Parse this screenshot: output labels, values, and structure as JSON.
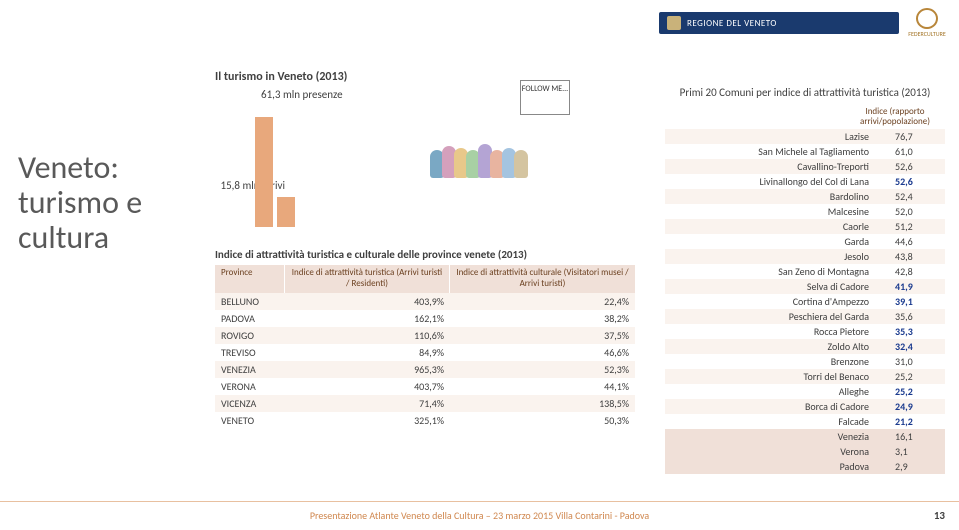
{
  "header": {
    "region_label": "REGIONE DEL VENETO",
    "logo_text": "FEDERCULTURE"
  },
  "left_title_lines": [
    "Veneto:",
    "turismo e",
    "cultura"
  ],
  "chart": {
    "title": "Il turismo in Veneto (2013)",
    "bar1_label": "61,3 mln presenze",
    "bar2_label": "15,8 mln arrivi",
    "bar1_height": 110,
    "bar2_height": 30,
    "bar_color": "#e8a87c"
  },
  "follow_sign": "FOLLOW ME...",
  "prov": {
    "title": "Indice di attrattività turistica e culturale delle province venete (2013)",
    "head": [
      "Province",
      "Indice di attrattività turistica (Arrivi turisti / Residenti)",
      "Indice di attrattività culturale (Visitatori musei / Arrivi turisti)"
    ],
    "rows": [
      [
        "BELLUNO",
        "403,9%",
        "22,4%"
      ],
      [
        "PADOVA",
        "162,1%",
        "38,2%"
      ],
      [
        "ROVIGO",
        "110,6%",
        "37,5%"
      ],
      [
        "TREVISO",
        "84,9%",
        "46,6%"
      ],
      [
        "VENEZIA",
        "965,3%",
        "52,3%"
      ],
      [
        "VERONA",
        "403,7%",
        "44,1%"
      ],
      [
        "VICENZA",
        "71,4%",
        "138,5%"
      ],
      [
        "VENETO",
        "325,1%",
        "50,3%"
      ]
    ]
  },
  "right": {
    "title": "Primi 20 Comuni per indice di attrattività turistica (2013)",
    "head2": "Indice (rapporto arrivi/popolazione)",
    "rows": [
      {
        "n": "Lazise",
        "v": "76,7",
        "hl": false
      },
      {
        "n": "San Michele al Tagliamento",
        "v": "61,0",
        "hl": false
      },
      {
        "n": "Cavallino-Treporti",
        "v": "52,6",
        "hl": false
      },
      {
        "n": "Livinallongo del Col di Lana",
        "v": "52,6",
        "hl": true
      },
      {
        "n": "Bardolino",
        "v": "52,4",
        "hl": false
      },
      {
        "n": "Malcesine",
        "v": "52,0",
        "hl": false
      },
      {
        "n": "Caorle",
        "v": "51,2",
        "hl": false
      },
      {
        "n": "Garda",
        "v": "44,6",
        "hl": false
      },
      {
        "n": "Jesolo",
        "v": "43,8",
        "hl": false
      },
      {
        "n": "San Zeno di Montagna",
        "v": "42,8",
        "hl": false
      },
      {
        "n": "Selva di Cadore",
        "v": "41,9",
        "hl": true
      },
      {
        "n": "Cortina d'Ampezzo",
        "v": "39,1",
        "hl": true
      },
      {
        "n": "Peschiera del Garda",
        "v": "35,6",
        "hl": false
      },
      {
        "n": "Rocca Pietore",
        "v": "35,3",
        "hl": true
      },
      {
        "n": "Zoldo Alto",
        "v": "32,4",
        "hl": true
      },
      {
        "n": "Brenzone",
        "v": "31,0",
        "hl": false
      },
      {
        "n": "Torri del Benaco",
        "v": "25,2",
        "hl": false
      },
      {
        "n": "Alleghe",
        "v": "25,2",
        "hl": true
      },
      {
        "n": "Borca di Cadore",
        "v": "24,9",
        "hl": true
      },
      {
        "n": "Falcade",
        "v": "21,2",
        "hl": true
      },
      {
        "n": "Venezia",
        "v": "16,1",
        "hl": false,
        "hl2": true
      },
      {
        "n": "Verona",
        "v": "3,1",
        "hl": false,
        "hl2": true
      },
      {
        "n": "Padova",
        "v": "2,9",
        "hl": false,
        "hl2": true
      }
    ]
  },
  "footer": "Presentazione Atlante Veneto della Cultura – 23 marzo 2015 Villa Contarini - Padova",
  "page": "13"
}
